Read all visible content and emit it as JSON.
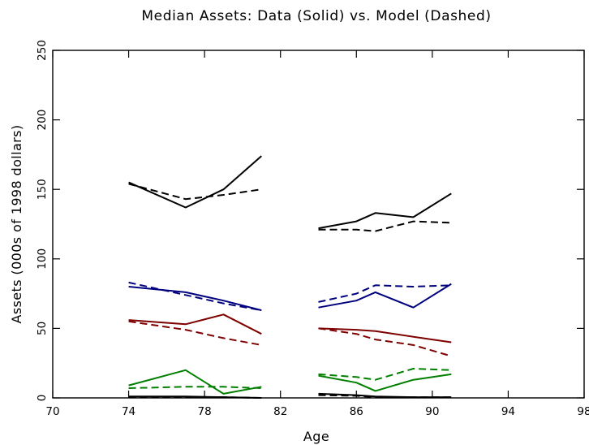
{
  "chart_data": {
    "type": "line",
    "title": "Median Assets:  Data (Solid) vs. Model (Dashed)",
    "xlabel": "Age",
    "ylabel": "Assets (000s of 1998 dollars)",
    "xlim": [
      70,
      98
    ],
    "ylim": [
      0,
      250
    ],
    "xticks": [
      70,
      74,
      78,
      82,
      86,
      90,
      94,
      98
    ],
    "yticks": [
      0,
      50,
      100,
      150,
      200,
      250
    ],
    "grid": false,
    "legend": "none",
    "series": [
      {
        "color": "#000000",
        "style": "solid",
        "x": [
          74,
          77,
          79,
          81
        ],
        "y": [
          155,
          137,
          150,
          174
        ]
      },
      {
        "color": "#000000",
        "style": "dashed",
        "x": [
          74,
          77,
          79,
          81
        ],
        "y": [
          154,
          143,
          146,
          150
        ]
      },
      {
        "color": "#000000",
        "style": "solid",
        "x": [
          84,
          86,
          87,
          89,
          91
        ],
        "y": [
          122,
          127,
          133,
          130,
          147
        ]
      },
      {
        "color": "#000000",
        "style": "dashed",
        "x": [
          84,
          86,
          87,
          89,
          91
        ],
        "y": [
          121,
          121,
          120,
          127,
          126
        ]
      },
      {
        "color": "#00007f",
        "style": "solid",
        "x": [
          74,
          77,
          79,
          81
        ],
        "y": [
          80,
          76,
          70,
          63
        ]
      },
      {
        "color": "#00007f",
        "style": "dashed",
        "x": [
          74,
          77,
          79,
          81
        ],
        "y": [
          83,
          74,
          68,
          63
        ]
      },
      {
        "color": "#00007f",
        "style": "solid",
        "x": [
          84,
          86,
          87,
          89,
          91
        ],
        "y": [
          65,
          70,
          76,
          65,
          82
        ]
      },
      {
        "color": "#00007f",
        "style": "dashed",
        "x": [
          84,
          86,
          87,
          89,
          91
        ],
        "y": [
          69,
          75,
          81,
          80,
          81
        ]
      },
      {
        "color": "#7f0000",
        "style": "solid",
        "x": [
          74,
          77,
          79,
          81
        ],
        "y": [
          56,
          53,
          60,
          46
        ]
      },
      {
        "color": "#7f0000",
        "style": "dashed",
        "x": [
          74,
          77,
          79,
          81
        ],
        "y": [
          55,
          49,
          43,
          38
        ]
      },
      {
        "color": "#7f0000",
        "style": "solid",
        "x": [
          84,
          86,
          87,
          89,
          91
        ],
        "y": [
          50,
          49,
          48,
          44,
          40
        ]
      },
      {
        "color": "#7f0000",
        "style": "dashed",
        "x": [
          84,
          86,
          87,
          89,
          91
        ],
        "y": [
          50,
          46,
          42,
          38,
          30
        ]
      },
      {
        "color": "#007f00",
        "style": "solid",
        "x": [
          74,
          77,
          79,
          81
        ],
        "y": [
          9,
          20,
          3,
          8
        ]
      },
      {
        "color": "#007f00",
        "style": "dashed",
        "x": [
          74,
          77,
          79,
          81
        ],
        "y": [
          7,
          8,
          8,
          7
        ]
      },
      {
        "color": "#007f00",
        "style": "solid",
        "x": [
          84,
          86,
          87,
          89,
          91
        ],
        "y": [
          16,
          11,
          5,
          13,
          17
        ]
      },
      {
        "color": "#007f00",
        "style": "dashed",
        "x": [
          84,
          86,
          87,
          89,
          91
        ],
        "y": [
          17,
          15,
          13,
          21,
          20
        ]
      },
      {
        "color": "#000000",
        "style": "solid",
        "x": [
          74,
          77,
          79,
          81
        ],
        "y": [
          1,
          1,
          0.5,
          0
        ]
      },
      {
        "color": "#000000",
        "style": "dashed",
        "x": [
          74,
          77,
          79,
          81
        ],
        "y": [
          0.5,
          0.5,
          0.5,
          0
        ]
      },
      {
        "color": "#000000",
        "style": "solid",
        "x": [
          84,
          86,
          87,
          89,
          91
        ],
        "y": [
          3,
          2,
          1,
          0.5,
          0.5
        ]
      },
      {
        "color": "#000000",
        "style": "dashed",
        "x": [
          84,
          86,
          87,
          89,
          91
        ],
        "y": [
          2,
          1.5,
          0.5,
          0.5,
          0.5
        ]
      }
    ]
  }
}
